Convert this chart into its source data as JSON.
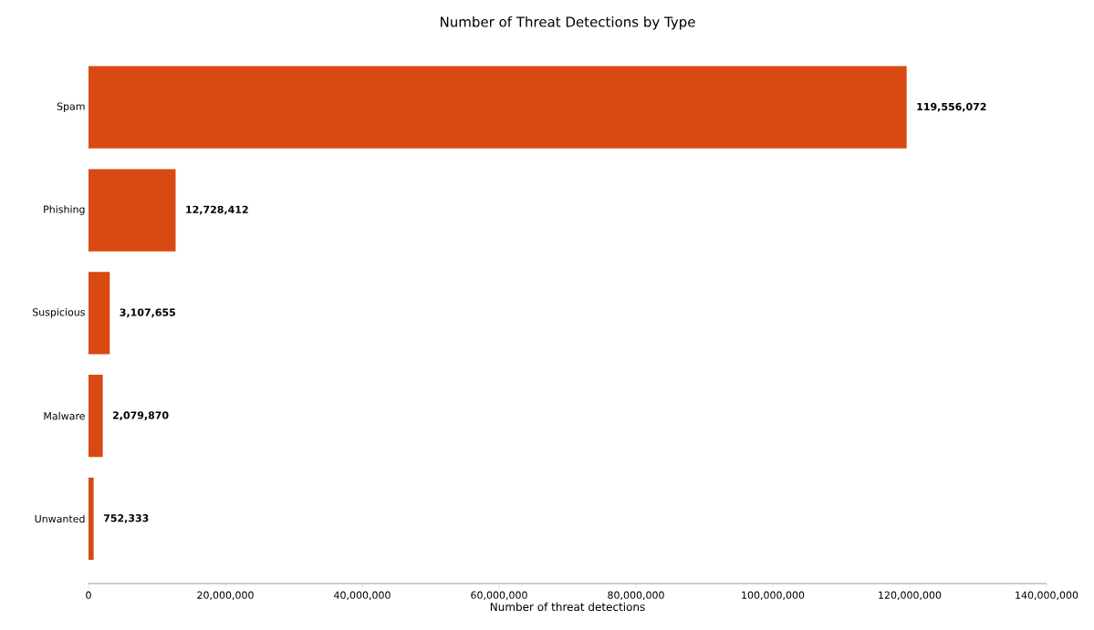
{
  "chart_data": {
    "type": "bar",
    "orientation": "horizontal",
    "title": "Number of Threat Detections by Type",
    "xlabel": "Number of threat detections",
    "categories": [
      "Spam",
      "Phishing",
      "Suspicious",
      "Malware",
      "Unwanted"
    ],
    "values": [
      119556072,
      12728412,
      3107655,
      2079870,
      752333
    ],
    "value_labels": [
      "119,556,072",
      "12,728,412",
      "3,107,655",
      "2,079,870",
      "752,333"
    ],
    "color": "#d84a12",
    "xlim": [
      0,
      140000000
    ],
    "xticks": [
      0,
      {
        "value": 20000000,
        "label": "20,000,000"
      },
      {
        "value": 40000000,
        "label": "40,000,000"
      },
      {
        "value": 60000000,
        "label": "60,000,000"
      },
      {
        "value": 80000000,
        "label": "80,000,000"
      },
      {
        "value": 100000000,
        "label": "100,000,000"
      },
      {
        "value": 120000000,
        "label": "120,000,000"
      },
      {
        "value": 140000000,
        "label": "140,000,000"
      }
    ],
    "grid": false
  }
}
